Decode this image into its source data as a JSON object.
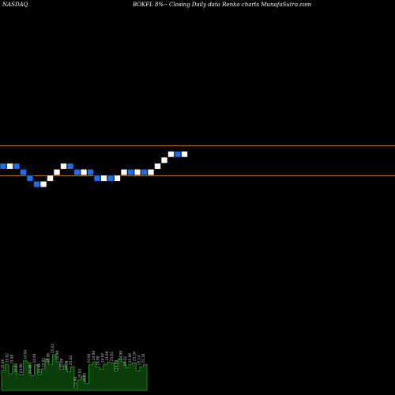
{
  "header": {
    "exchange": "NASDAQ",
    "title": "BOKFL 8%-- Closing Daily data Renko charts MunafaSutra.com"
  },
  "colors": {
    "background": "#000000",
    "brick_up": "#ffffff",
    "brick_down": "#1e6fe6",
    "reference_line": "#b86a12",
    "volume_fill": "#0b3d0b",
    "volume_border": "#1aa21a",
    "volume_label": "#c8c8c8"
  },
  "chart_data": {
    "type": "renko",
    "brick_size": 0.04,
    "bricks": [
      {
        "value": 25.02,
        "direction": "down"
      },
      {
        "value": 25.06,
        "direction": "up"
      },
      {
        "value": 25.02,
        "direction": "down"
      },
      {
        "value": 24.98,
        "direction": "down"
      },
      {
        "value": 24.94,
        "direction": "down"
      },
      {
        "value": 24.9,
        "direction": "down"
      },
      {
        "value": 24.94,
        "direction": "up"
      },
      {
        "value": 24.98,
        "direction": "up"
      },
      {
        "value": 25.02,
        "direction": "up"
      },
      {
        "value": 25.06,
        "direction": "up"
      },
      {
        "value": 25.02,
        "direction": "down"
      },
      {
        "value": 24.98,
        "direction": "down"
      },
      {
        "value": 25.02,
        "direction": "up"
      },
      {
        "value": 24.98,
        "direction": "down"
      },
      {
        "value": 24.94,
        "direction": "down"
      },
      {
        "value": 24.98,
        "direction": "up"
      },
      {
        "value": 24.94,
        "direction": "down"
      },
      {
        "value": 24.98,
        "direction": "up"
      },
      {
        "value": 25.02,
        "direction": "up"
      },
      {
        "value": 24.98,
        "direction": "down"
      },
      {
        "value": 25.02,
        "direction": "up"
      },
      {
        "value": 24.98,
        "direction": "down"
      },
      {
        "value": 25.02,
        "direction": "up"
      },
      {
        "value": 25.06,
        "direction": "up"
      },
      {
        "value": 25.1,
        "direction": "up"
      },
      {
        "value": 25.14,
        "direction": "up"
      },
      {
        "value": 25.1,
        "direction": "down"
      },
      {
        "value": 25.14,
        "direction": "up"
      }
    ],
    "reference_lines": [
      25.18,
      24.98
    ],
    "ylim": [
      22.0,
      25.6
    ],
    "volume": {
      "bars": [
        0.42,
        0.55,
        0.35,
        0.52,
        0.34,
        0.33,
        0.62,
        0.58,
        0.31,
        0.54,
        0.33,
        0.45,
        0.66,
        0.55,
        0.75,
        0.6,
        0.44,
        0.52,
        0.39,
        0.5,
        0.05,
        0.22,
        0.3,
        0.14,
        0.54,
        0.6,
        0.49,
        0.44,
        0.55,
        0.59,
        0.58,
        0.4,
        0.66,
        0.6,
        0.48,
        0.55,
        0.58,
        0.41,
        0.5,
        0.54
      ],
      "labels": [
        "25.06",
        "25.02",
        "25.06",
        "25.02",
        "24.98",
        "24.94",
        "24.90",
        "24.94",
        "24.98",
        "25.02",
        "25.06",
        "25.02",
        "24.98",
        "25.06",
        "24.98",
        "25.02",
        "24.98",
        "25.02",
        "25.02",
        "24.94",
        "24.98",
        "24.90",
        "24.97",
        "24.99",
        "25.02",
        "24.98",
        "24.98",
        "25.02",
        "25.06",
        "25.10",
        "25.14",
        "25.10"
      ]
    }
  }
}
